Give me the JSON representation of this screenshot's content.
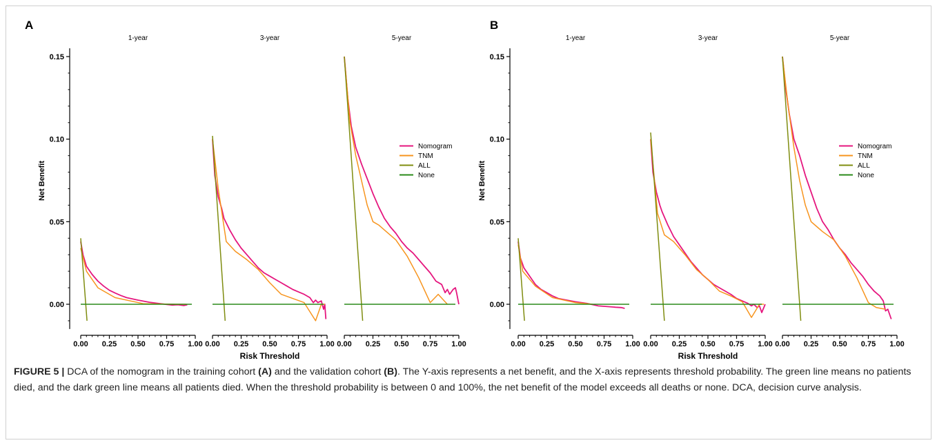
{
  "chart_data": [
    {
      "type": "line",
      "panel_label": "A",
      "ylabel": "Net Benefit",
      "xlabel": "Risk Threshold",
      "ylim": [
        -0.015,
        0.155
      ],
      "xlim": [
        0,
        1
      ],
      "y_ticks": [
        "0.00",
        "0.05",
        "0.10",
        "0.15"
      ],
      "x_ticks": [
        "0.00",
        "0.25",
        "0.50",
        "0.75",
        "1.00"
      ],
      "legend": [
        "Nomogram",
        "TNM",
        "ALL",
        "None"
      ],
      "legend_position": "right, middle of 5-year facet",
      "grid": false,
      "facets": [
        {
          "title": "1-year",
          "series": [
            {
              "name": "Nomogram",
              "x": [
                0.0,
                0.02,
                0.05,
                0.1,
                0.15,
                0.2,
                0.25,
                0.3,
                0.35,
                0.4,
                0.5,
                0.6,
                0.7,
                0.8,
                0.85,
                0.9,
                0.93
              ],
              "y": [
                0.038,
                0.03,
                0.023,
                0.018,
                0.014,
                0.011,
                0.0085,
                0.0068,
                0.0053,
                0.004,
                0.0025,
                0.0012,
                0.0003,
                -0.0005,
                -0.0003,
                -0.0008,
                -0.0003
              ]
            },
            {
              "name": "TNM",
              "x": [
                0.0,
                0.05,
                0.15,
                0.3,
                0.55,
                0.75,
                0.85,
                0.92
              ],
              "y": [
                0.034,
                0.02,
                0.01,
                0.004,
                0.0003,
                0.0001,
                0.0,
                0.0
              ]
            },
            {
              "name": "ALL",
              "x": [
                0.0,
                0.055
              ],
              "y": [
                0.04,
                -0.01
              ]
            },
            {
              "name": "None",
              "x": [
                0.0,
                0.97
              ],
              "y": [
                0.0,
                0.0
              ]
            }
          ]
        },
        {
          "title": "3-year",
          "series": [
            {
              "name": "Nomogram",
              "x": [
                0.0,
                0.02,
                0.05,
                0.08,
                0.1,
                0.15,
                0.2,
                0.25,
                0.3,
                0.35,
                0.4,
                0.45,
                0.5,
                0.55,
                0.6,
                0.65,
                0.7,
                0.75,
                0.8,
                0.85,
                0.88,
                0.9,
                0.92,
                0.95,
                0.97,
                0.98,
                0.99
              ],
              "y": [
                0.1,
                0.078,
                0.065,
                0.058,
                0.052,
                0.045,
                0.039,
                0.034,
                0.03,
                0.026,
                0.022,
                0.019,
                0.017,
                0.015,
                0.013,
                0.011,
                0.009,
                0.0075,
                0.006,
                0.004,
                0.001,
                0.0025,
                0.001,
                0.002,
                -0.003,
                0.0,
                -0.009
              ]
            },
            {
              "name": "TNM",
              "x": [
                0.0,
                0.05,
                0.12,
                0.2,
                0.3,
                0.4,
                0.5,
                0.6,
                0.7,
                0.8,
                0.9,
                0.95,
                0.98
              ],
              "y": [
                0.1,
                0.07,
                0.038,
                0.032,
                0.027,
                0.021,
                0.013,
                0.006,
                0.0035,
                0.001,
                -0.01,
                0.0,
                0.0
              ]
            },
            {
              "name": "ALL",
              "x": [
                0.0,
                0.11
              ],
              "y": [
                0.102,
                -0.01
              ]
            },
            {
              "name": "None",
              "x": [
                0.0,
                0.97
              ],
              "y": [
                0.0,
                0.0
              ]
            }
          ]
        },
        {
          "title": "5-year",
          "series": [
            {
              "name": "Nomogram",
              "x": [
                0.0,
                0.03,
                0.06,
                0.1,
                0.15,
                0.2,
                0.25,
                0.3,
                0.35,
                0.4,
                0.45,
                0.5,
                0.55,
                0.6,
                0.65,
                0.7,
                0.75,
                0.8,
                0.85,
                0.88,
                0.9,
                0.92,
                0.95,
                0.97,
                0.98,
                1.0
              ],
              "y": [
                0.15,
                0.125,
                0.108,
                0.095,
                0.085,
                0.076,
                0.067,
                0.059,
                0.052,
                0.047,
                0.043,
                0.038,
                0.034,
                0.031,
                0.027,
                0.023,
                0.019,
                0.014,
                0.012,
                0.007,
                0.009,
                0.006,
                0.009,
                0.01,
                0.007,
                0.0
              ]
            },
            {
              "name": "TNM",
              "x": [
                0.0,
                0.05,
                0.1,
                0.15,
                0.2,
                0.25,
                0.3,
                0.35,
                0.45,
                0.55,
                0.65,
                0.75,
                0.82,
                0.9
              ],
              "y": [
                0.15,
                0.11,
                0.09,
                0.075,
                0.06,
                0.05,
                0.048,
                0.045,
                0.039,
                0.029,
                0.016,
                0.001,
                0.006,
                0.0
              ]
            },
            {
              "name": "ALL",
              "x": [
                0.0,
                0.16
              ],
              "y": [
                0.15,
                -0.01
              ]
            },
            {
              "name": "None",
              "x": [
                0.0,
                0.97
              ],
              "y": [
                0.0,
                0.0
              ]
            }
          ]
        }
      ]
    },
    {
      "type": "line",
      "panel_label": "B",
      "ylabel": "Net Benefit",
      "xlabel": "Risk Threshold",
      "ylim": [
        -0.015,
        0.155
      ],
      "xlim": [
        0,
        1
      ],
      "y_ticks": [
        "0.00",
        "0.05",
        "0.10",
        "0.15"
      ],
      "x_ticks": [
        "0.00",
        "0.25",
        "0.50",
        "0.75",
        "1.00"
      ],
      "legend": [
        "Nomogram",
        "TNM",
        "ALL",
        "None"
      ],
      "legend_position": "right, middle of 5-year facet",
      "grid": false,
      "facets": [
        {
          "title": "1-year",
          "series": [
            {
              "name": "Nomogram",
              "x": [
                0.0,
                0.02,
                0.05,
                0.1,
                0.15,
                0.2,
                0.25,
                0.3,
                0.35,
                0.4,
                0.5,
                0.6,
                0.7,
                0.8,
                0.85,
                0.9,
                0.93
              ],
              "y": [
                0.038,
                0.028,
                0.022,
                0.017,
                0.012,
                0.009,
                0.007,
                0.005,
                0.0035,
                0.0028,
                0.0015,
                0.0005,
                -0.001,
                -0.0015,
                -0.0018,
                -0.002,
                -0.0025
              ]
            },
            {
              "name": "TNM",
              "x": [
                0.0,
                0.04,
                0.15,
                0.3,
                0.5,
                0.65
              ],
              "y": [
                0.036,
                0.02,
                0.011,
                0.004,
                0.001,
                0.0
              ]
            },
            {
              "name": "ALL",
              "x": [
                0.0,
                0.055
              ],
              "y": [
                0.04,
                -0.01
              ]
            },
            {
              "name": "None",
              "x": [
                0.0,
                0.97
              ],
              "y": [
                0.0,
                0.0
              ]
            }
          ]
        },
        {
          "title": "3-year",
          "series": [
            {
              "name": "Nomogram",
              "x": [
                0.0,
                0.02,
                0.05,
                0.08,
                0.1,
                0.15,
                0.2,
                0.25,
                0.3,
                0.35,
                0.4,
                0.45,
                0.5,
                0.55,
                0.6,
                0.65,
                0.7,
                0.75,
                0.8,
                0.85,
                0.88,
                0.9,
                0.93,
                0.95,
                0.97,
                1.0
              ],
              "y": [
                0.1,
                0.08,
                0.068,
                0.06,
                0.056,
                0.048,
                0.041,
                0.036,
                0.031,
                0.026,
                0.022,
                0.018,
                0.015,
                0.012,
                0.01,
                0.008,
                0.006,
                0.0035,
                0.002,
                0.0005,
                -0.001,
                0.0,
                -0.002,
                -0.001,
                -0.005,
                0.0
              ]
            },
            {
              "name": "TNM",
              "x": [
                0.0,
                0.06,
                0.12,
                0.2,
                0.3,
                0.4,
                0.5,
                0.6,
                0.7,
                0.8,
                0.88,
                0.95,
                0.97,
                0.99
              ],
              "y": [
                0.1,
                0.055,
                0.042,
                0.038,
                0.03,
                0.021,
                0.015,
                0.008,
                0.005,
                0.0015,
                -0.008,
                0.0,
                0.0,
                0.0
              ]
            },
            {
              "name": "ALL",
              "x": [
                0.0,
                0.12
              ],
              "y": [
                0.104,
                -0.01
              ]
            },
            {
              "name": "None",
              "x": [
                0.0,
                0.97
              ],
              "y": [
                0.0,
                0.0
              ]
            }
          ]
        },
        {
          "title": "5-year",
          "series": [
            {
              "name": "Nomogram",
              "x": [
                0.0,
                0.03,
                0.06,
                0.1,
                0.15,
                0.2,
                0.25,
                0.3,
                0.35,
                0.4,
                0.45,
                0.5,
                0.55,
                0.6,
                0.65,
                0.7,
                0.75,
                0.8,
                0.85,
                0.88,
                0.9,
                0.92,
                0.95
              ],
              "y": [
                0.15,
                0.13,
                0.115,
                0.1,
                0.09,
                0.078,
                0.068,
                0.058,
                0.05,
                0.045,
                0.039,
                0.034,
                0.03,
                0.025,
                0.021,
                0.017,
                0.012,
                0.008,
                0.005,
                0.002,
                -0.004,
                -0.003,
                -0.009
              ]
            },
            {
              "name": "TNM",
              "x": [
                0.0,
                0.05,
                0.1,
                0.15,
                0.2,
                0.25,
                0.3,
                0.35,
                0.45,
                0.55,
                0.65,
                0.75,
                0.82,
                0.9
              ],
              "y": [
                0.15,
                0.12,
                0.095,
                0.075,
                0.06,
                0.05,
                0.047,
                0.044,
                0.039,
                0.029,
                0.016,
                0.001,
                -0.002,
                -0.003
              ]
            },
            {
              "name": "ALL",
              "x": [
                0.0,
                0.16
              ],
              "y": [
                0.15,
                -0.01
              ]
            },
            {
              "name": "None",
              "x": [
                0.0,
                0.97
              ],
              "y": [
                0.0,
                0.0
              ]
            }
          ]
        }
      ]
    }
  ],
  "colors": {
    "Nomogram": "#e5167e",
    "TNM": "#f7941d",
    "ALL": "#7f8c0f",
    "None": "#2a8a18"
  },
  "caption": {
    "figure_label": "FIGURE 5 |",
    "part1": " DCA of the nomogram in the training cohort ",
    "ref_a": "(A)",
    "part2": " and the validation cohort ",
    "ref_b": "(B)",
    "part3": ". The Y-axis represents a net benefit, and the X-axis represents threshold probability. The green line means no patients died, and the dark green line means all patients died. When the threshold probability is between 0 and 100%, the net benefit of the model exceeds all deaths or none. DCA, decision curve analysis."
  }
}
